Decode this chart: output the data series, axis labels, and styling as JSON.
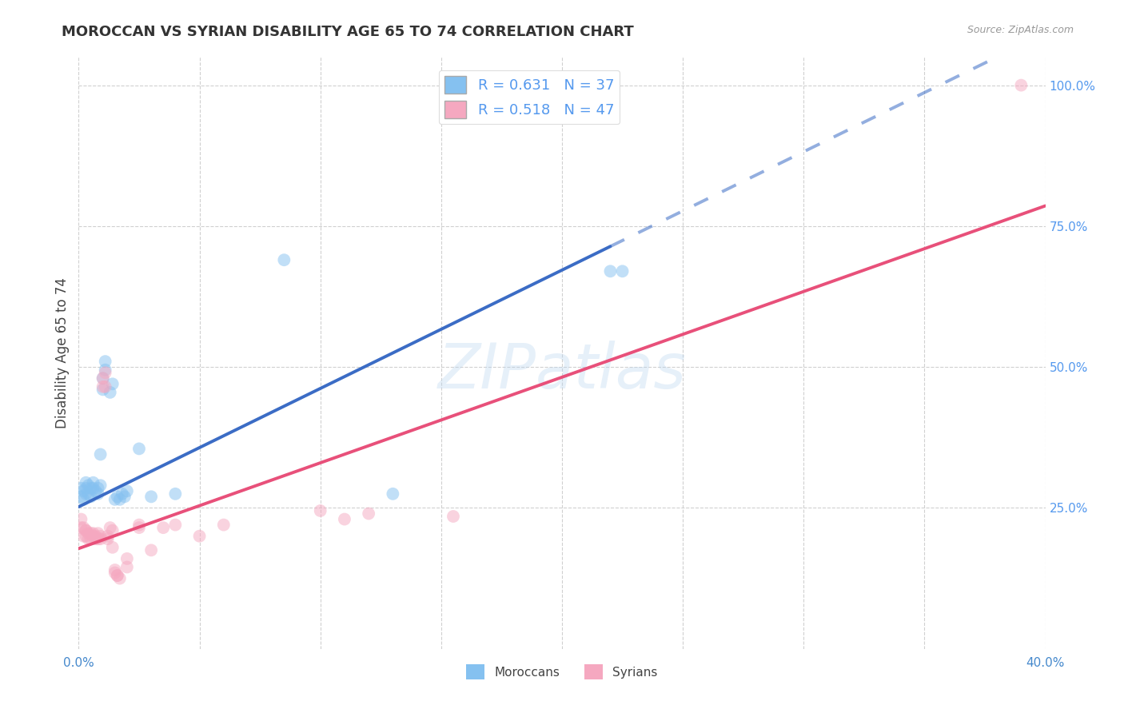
{
  "title": "MOROCCAN VS SYRIAN DISABILITY AGE 65 TO 74 CORRELATION CHART",
  "source": "Source: ZipAtlas.com",
  "ylabel": "Disability Age 65 to 74",
  "watermark": "ZIPatlas",
  "xlim": [
    0.0,
    0.4
  ],
  "ylim": [
    0.0,
    1.05
  ],
  "ytick_right_vals": [
    0.25,
    0.5,
    0.75,
    1.0
  ],
  "ytick_right_labels": [
    "25.0%",
    "50.0%",
    "75.0%",
    "100.0%"
  ],
  "xtick_vals": [
    0.0,
    0.05,
    0.1,
    0.15,
    0.2,
    0.25,
    0.3,
    0.35,
    0.4
  ],
  "xtick_labels": [
    "0.0%",
    "",
    "",
    "",
    "",
    "",
    "",
    "",
    "40.0%"
  ],
  "moroccan_R": 0.631,
  "moroccan_N": 37,
  "syrian_R": 0.518,
  "syrian_N": 47,
  "moroccan_color": "#85C1F0",
  "syrian_color": "#F5A8C0",
  "moroccan_line_color": "#3B6CC5",
  "syrian_line_color": "#E8507A",
  "moroccan_line_solid_end": 0.22,
  "moroccan_scatter": [
    [
      0.001,
      0.285
    ],
    [
      0.001,
      0.27
    ],
    [
      0.002,
      0.28
    ],
    [
      0.002,
      0.265
    ],
    [
      0.003,
      0.285
    ],
    [
      0.003,
      0.295
    ],
    [
      0.003,
      0.275
    ],
    [
      0.004,
      0.275
    ],
    [
      0.004,
      0.29
    ],
    [
      0.005,
      0.285
    ],
    [
      0.005,
      0.27
    ],
    [
      0.006,
      0.285
    ],
    [
      0.006,
      0.295
    ],
    [
      0.007,
      0.28
    ],
    [
      0.008,
      0.285
    ],
    [
      0.008,
      0.275
    ],
    [
      0.009,
      0.29
    ],
    [
      0.009,
      0.345
    ],
    [
      0.01,
      0.46
    ],
    [
      0.01,
      0.48
    ],
    [
      0.011,
      0.495
    ],
    [
      0.011,
      0.51
    ],
    [
      0.013,
      0.455
    ],
    [
      0.014,
      0.47
    ],
    [
      0.015,
      0.265
    ],
    [
      0.016,
      0.27
    ],
    [
      0.017,
      0.265
    ],
    [
      0.018,
      0.275
    ],
    [
      0.019,
      0.27
    ],
    [
      0.02,
      0.28
    ],
    [
      0.025,
      0.355
    ],
    [
      0.03,
      0.27
    ],
    [
      0.04,
      0.275
    ],
    [
      0.085,
      0.69
    ],
    [
      0.13,
      0.275
    ],
    [
      0.22,
      0.67
    ],
    [
      0.225,
      0.67
    ]
  ],
  "syrian_scatter": [
    [
      0.001,
      0.23
    ],
    [
      0.001,
      0.215
    ],
    [
      0.002,
      0.2
    ],
    [
      0.002,
      0.215
    ],
    [
      0.003,
      0.21
    ],
    [
      0.003,
      0.2
    ],
    [
      0.003,
      0.21
    ],
    [
      0.004,
      0.205
    ],
    [
      0.004,
      0.195
    ],
    [
      0.005,
      0.205
    ],
    [
      0.005,
      0.195
    ],
    [
      0.006,
      0.2
    ],
    [
      0.006,
      0.205
    ],
    [
      0.007,
      0.195
    ],
    [
      0.007,
      0.2
    ],
    [
      0.008,
      0.195
    ],
    [
      0.008,
      0.205
    ],
    [
      0.009,
      0.2
    ],
    [
      0.009,
      0.195
    ],
    [
      0.01,
      0.465
    ],
    [
      0.01,
      0.48
    ],
    [
      0.011,
      0.49
    ],
    [
      0.011,
      0.465
    ],
    [
      0.012,
      0.2
    ],
    [
      0.012,
      0.195
    ],
    [
      0.013,
      0.215
    ],
    [
      0.014,
      0.21
    ],
    [
      0.014,
      0.18
    ],
    [
      0.015,
      0.14
    ],
    [
      0.015,
      0.135
    ],
    [
      0.016,
      0.13
    ],
    [
      0.016,
      0.13
    ],
    [
      0.017,
      0.125
    ],
    [
      0.02,
      0.145
    ],
    [
      0.02,
      0.16
    ],
    [
      0.025,
      0.22
    ],
    [
      0.025,
      0.215
    ],
    [
      0.03,
      0.175
    ],
    [
      0.035,
      0.215
    ],
    [
      0.04,
      0.22
    ],
    [
      0.05,
      0.2
    ],
    [
      0.06,
      0.22
    ],
    [
      0.1,
      0.245
    ],
    [
      0.11,
      0.23
    ],
    [
      0.12,
      0.24
    ],
    [
      0.155,
      0.235
    ],
    [
      0.39,
      1.0
    ]
  ],
  "background_color": "#FFFFFF",
  "grid_color": "#D0D0D0",
  "title_color": "#333333",
  "right_axis_color": "#5599EE",
  "marker_size": 130,
  "marker_alpha": 0.5,
  "line_width": 2.8,
  "moroccan_line_intercept": 0.252,
  "moroccan_line_slope": 2.1,
  "syrian_line_intercept": 0.178,
  "syrian_line_slope": 1.52
}
